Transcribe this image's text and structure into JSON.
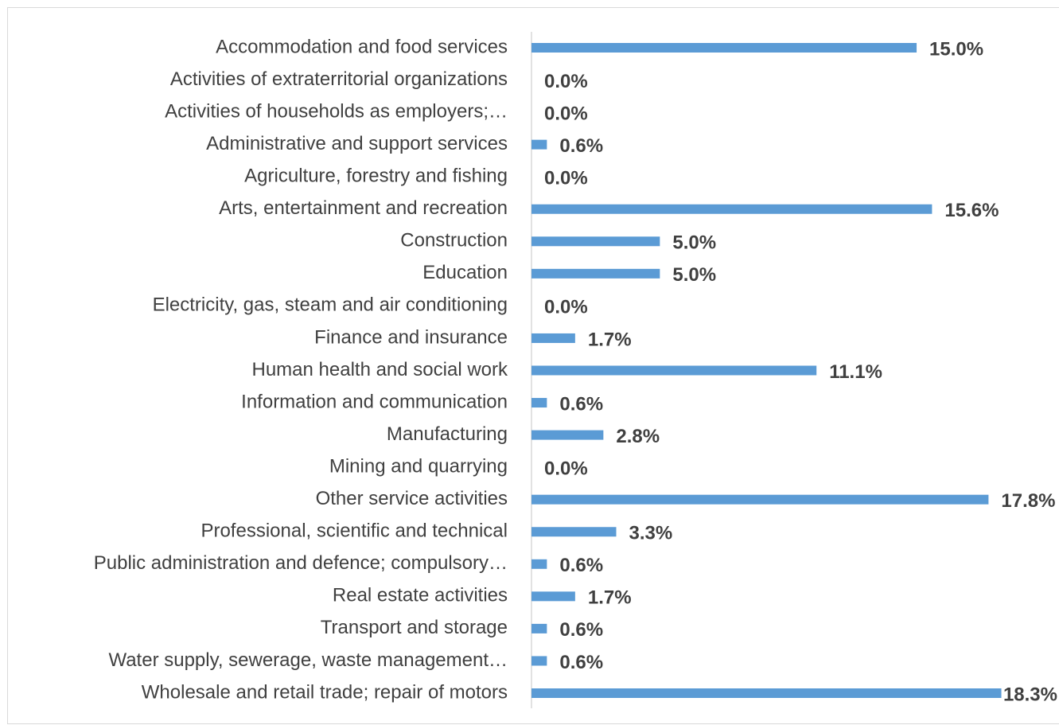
{
  "chart_data": {
    "type": "bar",
    "orientation": "horizontal",
    "color": "#5b9bd5",
    "categories": [
      "Accommodation and food services",
      "Activities of extraterritorial organizations",
      "Activities of households as employers;…",
      "Administrative and support services",
      "Agriculture, forestry and fishing",
      "Arts, entertainment and recreation",
      "Construction",
      "Education",
      "Electricity, gas, steam and air conditioning",
      "Finance and insurance",
      "Human health and social work",
      "Information and communication",
      "Manufacturing",
      "Mining and quarrying",
      "Other service activities",
      "Professional, scientific and technical",
      "Public administration and defence; compulsory…",
      "Real estate activities",
      "Transport and storage",
      "Water supply, sewerage, waste management…",
      "Wholesale and retail trade; repair of motors"
    ],
    "values": [
      15.0,
      0.0,
      0.0,
      0.6,
      0.0,
      15.6,
      5.0,
      5.0,
      0.0,
      1.7,
      11.1,
      0.6,
      2.8,
      0.0,
      17.8,
      3.3,
      0.6,
      1.7,
      0.6,
      0.6,
      18.3
    ],
    "value_labels": [
      "15.0%",
      "0.0%",
      "0.0%",
      "0.6%",
      "0.0%",
      "15.6%",
      "5.0%",
      "5.0%",
      "0.0%",
      "1.7%",
      "11.1%",
      "0.6%",
      "2.8%",
      "0.0%",
      "17.8%",
      "3.3%",
      "0.6%",
      "1.7%",
      "0.6%",
      "0.6%",
      "18.3%"
    ]
  }
}
